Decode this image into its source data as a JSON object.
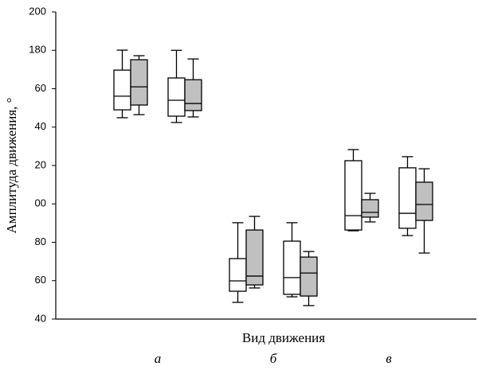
{
  "chart_data": {
    "type": "box",
    "ylabel": "Амплитуда движения, °",
    "xlabel": "Вид движения",
    "categories": [
      "а",
      "б",
      "в"
    ],
    "ylim": [
      40,
      200
    ],
    "yticks": [
      {
        "value": 40,
        "label": "40"
      },
      {
        "value": 60,
        "label": "60"
      },
      {
        "value": 80,
        "label": "80"
      },
      {
        "value": 100,
        "label": "00"
      },
      {
        "value": 120,
        "label": "20"
      },
      {
        "value": 140,
        "label": "40"
      },
      {
        "value": 160,
        "label": "60"
      },
      180,
      200
    ],
    "series": [
      {
        "color": "#ffffff",
        "boxes": [
          {
            "whislo": 144.9,
            "q1": 149.0,
            "med": 156.1,
            "q3": 169.7,
            "whishi": 180.1
          },
          {
            "whislo": 142.4,
            "q1": 145.7,
            "med": 154.0,
            "q3": 165.6,
            "whishi": 180.0
          },
          {
            "whislo": 48.7,
            "q1": 54.5,
            "med": 59.9,
            "q3": 71.5,
            "whishi": 90.2
          },
          {
            "whislo": 51.6,
            "q1": 52.9,
            "med": 61.6,
            "q3": 80.6,
            "whishi": 90.2
          },
          {
            "whislo": 86.0,
            "q1": 86.4,
            "med": 93.9,
            "q3": 122.5,
            "whishi": 128.3
          },
          {
            "whislo": 83.5,
            "q1": 87.3,
            "med": 95.1,
            "q3": 118.8,
            "whishi": 124.6
          }
        ]
      },
      {
        "color": "#c0c0c0",
        "boxes": [
          {
            "whislo": 146.5,
            "q1": 151.5,
            "med": 161.0,
            "q3": 175.1,
            "whishi": 177.2
          },
          {
            "whislo": 145.3,
            "q1": 148.6,
            "med": 152.3,
            "q3": 164.7,
            "whishi": 175.5
          },
          {
            "whislo": 56.2,
            "q1": 57.8,
            "med": 62.4,
            "q3": 86.4,
            "whishi": 93.5
          },
          {
            "whislo": 47.0,
            "q1": 52.0,
            "med": 64.0,
            "q3": 72.3,
            "whishi": 75.2
          },
          {
            "whislo": 90.6,
            "q1": 93.1,
            "med": 95.6,
            "q3": 102.2,
            "whishi": 105.5
          },
          {
            "whislo": 74.4,
            "q1": 91.4,
            "med": 99.7,
            "q3": 111.3,
            "whishi": 118.3
          }
        ]
      }
    ]
  }
}
